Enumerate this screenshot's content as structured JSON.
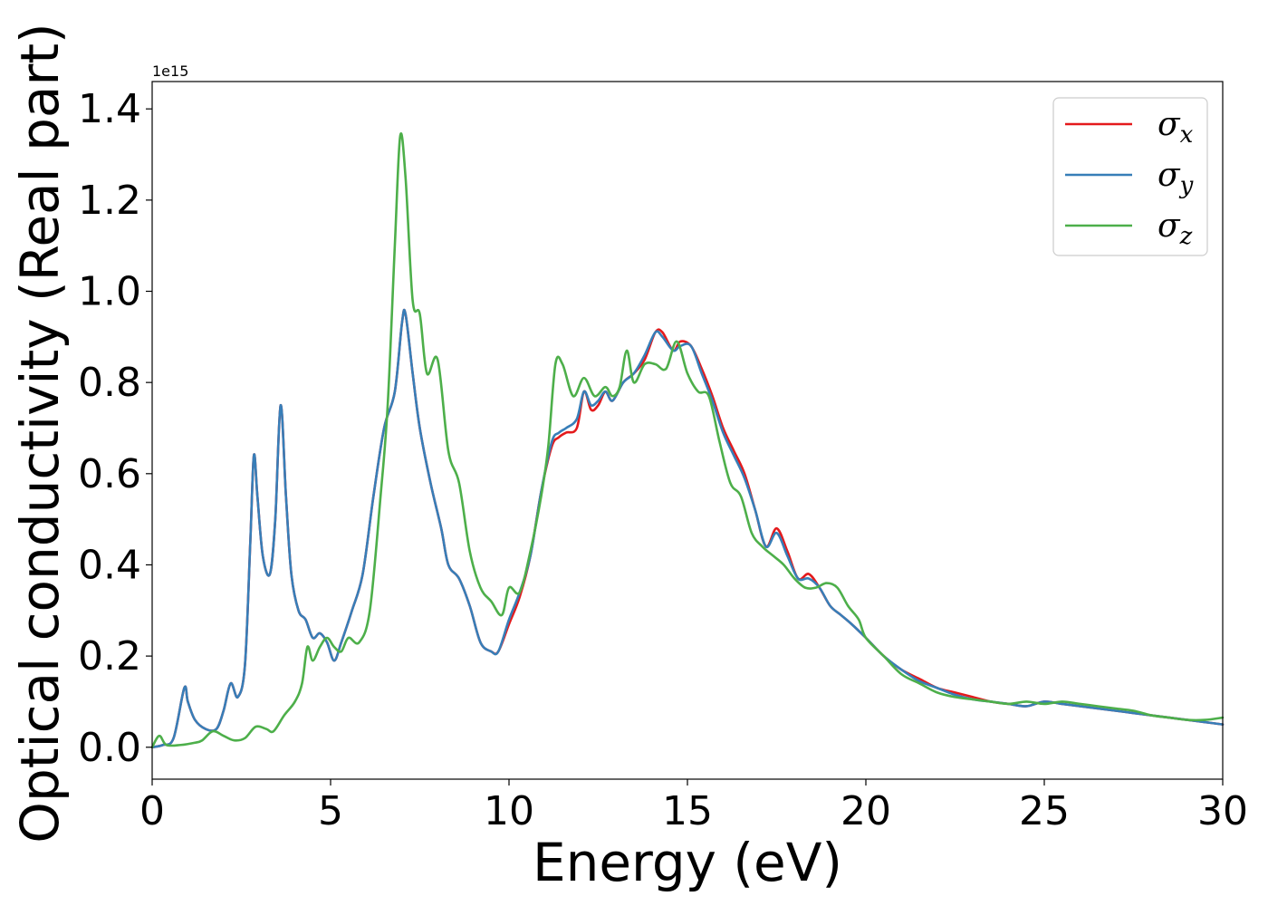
{
  "chart_data": {
    "type": "line",
    "xlabel": "Energy (eV)",
    "ylabel": "Optical conductivity (Real part)",
    "y_offset_text": "1e15",
    "xlim": [
      0,
      30
    ],
    "ylim": [
      -0.07,
      1.46
    ],
    "xticks": [
      0,
      5,
      10,
      15,
      20,
      25,
      30
    ],
    "xtick_labels": [
      "0",
      "5",
      "10",
      "15",
      "20",
      "25",
      "30"
    ],
    "yticks": [
      0.0,
      0.2,
      0.4,
      0.6,
      0.8,
      1.0,
      1.2,
      1.4
    ],
    "ytick_labels": [
      "0.0",
      "0.2",
      "0.4",
      "0.6",
      "0.8",
      "1.0",
      "1.2",
      "1.4"
    ],
    "grid": false,
    "legend_position": "top-right",
    "series": [
      {
        "name": "σx",
        "legend_base": "σ",
        "legend_sub": "x",
        "color": "#e41a1c",
        "points": [
          [
            0,
            0.0
          ],
          [
            0.3,
            0.005
          ],
          [
            0.6,
            0.02
          ],
          [
            0.9,
            0.13
          ],
          [
            1.0,
            0.1
          ],
          [
            1.2,
            0.06
          ],
          [
            1.5,
            0.04
          ],
          [
            1.8,
            0.04
          ],
          [
            2.0,
            0.08
          ],
          [
            2.2,
            0.14
          ],
          [
            2.4,
            0.11
          ],
          [
            2.6,
            0.18
          ],
          [
            2.75,
            0.45
          ],
          [
            2.85,
            0.64
          ],
          [
            2.95,
            0.55
          ],
          [
            3.1,
            0.42
          ],
          [
            3.3,
            0.38
          ],
          [
            3.45,
            0.5
          ],
          [
            3.6,
            0.75
          ],
          [
            3.75,
            0.55
          ],
          [
            3.9,
            0.38
          ],
          [
            4.1,
            0.3
          ],
          [
            4.3,
            0.28
          ],
          [
            4.5,
            0.24
          ],
          [
            4.7,
            0.25
          ],
          [
            4.9,
            0.23
          ],
          [
            5.1,
            0.19
          ],
          [
            5.3,
            0.23
          ],
          [
            5.6,
            0.3
          ],
          [
            5.9,
            0.38
          ],
          [
            6.2,
            0.55
          ],
          [
            6.5,
            0.7
          ],
          [
            6.8,
            0.78
          ],
          [
            7.0,
            0.93
          ],
          [
            7.1,
            0.95
          ],
          [
            7.3,
            0.82
          ],
          [
            7.5,
            0.7
          ],
          [
            7.8,
            0.58
          ],
          [
            8.1,
            0.48
          ],
          [
            8.3,
            0.4
          ],
          [
            8.6,
            0.37
          ],
          [
            8.9,
            0.31
          ],
          [
            9.2,
            0.23
          ],
          [
            9.5,
            0.21
          ],
          [
            9.7,
            0.21
          ],
          [
            10.0,
            0.27
          ],
          [
            10.3,
            0.33
          ],
          [
            10.6,
            0.42
          ],
          [
            10.9,
            0.56
          ],
          [
            11.2,
            0.66
          ],
          [
            11.4,
            0.68
          ],
          [
            11.6,
            0.69
          ],
          [
            11.9,
            0.7
          ],
          [
            12.1,
            0.78
          ],
          [
            12.3,
            0.74
          ],
          [
            12.5,
            0.75
          ],
          [
            12.7,
            0.78
          ],
          [
            12.9,
            0.76
          ],
          [
            13.2,
            0.8
          ],
          [
            13.5,
            0.82
          ],
          [
            13.8,
            0.85
          ],
          [
            14.1,
            0.91
          ],
          [
            14.3,
            0.91
          ],
          [
            14.6,
            0.87
          ],
          [
            14.8,
            0.89
          ],
          [
            15.1,
            0.88
          ],
          [
            15.4,
            0.83
          ],
          [
            15.7,
            0.77
          ],
          [
            16.0,
            0.7
          ],
          [
            16.3,
            0.65
          ],
          [
            16.6,
            0.6
          ],
          [
            16.9,
            0.52
          ],
          [
            17.2,
            0.44
          ],
          [
            17.5,
            0.48
          ],
          [
            17.8,
            0.43
          ],
          [
            18.1,
            0.37
          ],
          [
            18.4,
            0.38
          ],
          [
            18.7,
            0.35
          ],
          [
            19.0,
            0.31
          ],
          [
            19.3,
            0.29
          ],
          [
            19.6,
            0.27
          ],
          [
            20.0,
            0.24
          ],
          [
            20.5,
            0.2
          ],
          [
            21.0,
            0.17
          ],
          [
            21.5,
            0.15
          ],
          [
            22.0,
            0.13
          ],
          [
            22.5,
            0.12
          ],
          [
            23.0,
            0.11
          ],
          [
            23.5,
            0.1
          ],
          [
            24.0,
            0.095
          ],
          [
            24.5,
            0.09
          ],
          [
            25.0,
            0.1
          ],
          [
            25.5,
            0.095
          ],
          [
            26.0,
            0.09
          ],
          [
            26.5,
            0.085
          ],
          [
            27.0,
            0.08
          ],
          [
            27.5,
            0.075
          ],
          [
            28.0,
            0.07
          ],
          [
            28.5,
            0.065
          ],
          [
            29.0,
            0.06
          ],
          [
            29.5,
            0.055
          ],
          [
            30.0,
            0.05
          ]
        ]
      },
      {
        "name": "σy",
        "legend_base": "σ",
        "legend_sub": "y",
        "color": "#377eb8",
        "points": [
          [
            0,
            0.0
          ],
          [
            0.3,
            0.005
          ],
          [
            0.6,
            0.02
          ],
          [
            0.9,
            0.13
          ],
          [
            1.0,
            0.1
          ],
          [
            1.2,
            0.06
          ],
          [
            1.5,
            0.04
          ],
          [
            1.8,
            0.04
          ],
          [
            2.0,
            0.08
          ],
          [
            2.2,
            0.14
          ],
          [
            2.4,
            0.11
          ],
          [
            2.6,
            0.18
          ],
          [
            2.75,
            0.45
          ],
          [
            2.85,
            0.64
          ],
          [
            2.95,
            0.55
          ],
          [
            3.1,
            0.42
          ],
          [
            3.3,
            0.38
          ],
          [
            3.45,
            0.5
          ],
          [
            3.6,
            0.75
          ],
          [
            3.75,
            0.55
          ],
          [
            3.9,
            0.38
          ],
          [
            4.1,
            0.3
          ],
          [
            4.3,
            0.28
          ],
          [
            4.5,
            0.24
          ],
          [
            4.7,
            0.25
          ],
          [
            4.9,
            0.23
          ],
          [
            5.1,
            0.19
          ],
          [
            5.3,
            0.23
          ],
          [
            5.6,
            0.3
          ],
          [
            5.9,
            0.38
          ],
          [
            6.2,
            0.55
          ],
          [
            6.5,
            0.7
          ],
          [
            6.8,
            0.78
          ],
          [
            7.0,
            0.93
          ],
          [
            7.1,
            0.95
          ],
          [
            7.3,
            0.82
          ],
          [
            7.5,
            0.7
          ],
          [
            7.8,
            0.58
          ],
          [
            8.1,
            0.48
          ],
          [
            8.3,
            0.4
          ],
          [
            8.6,
            0.37
          ],
          [
            8.9,
            0.31
          ],
          [
            9.2,
            0.23
          ],
          [
            9.5,
            0.21
          ],
          [
            9.7,
            0.21
          ],
          [
            10.0,
            0.28
          ],
          [
            10.3,
            0.34
          ],
          [
            10.6,
            0.42
          ],
          [
            10.9,
            0.56
          ],
          [
            11.2,
            0.67
          ],
          [
            11.4,
            0.69
          ],
          [
            11.6,
            0.7
          ],
          [
            11.9,
            0.72
          ],
          [
            12.1,
            0.78
          ],
          [
            12.3,
            0.75
          ],
          [
            12.5,
            0.76
          ],
          [
            12.7,
            0.78
          ],
          [
            12.9,
            0.76
          ],
          [
            13.2,
            0.8
          ],
          [
            13.5,
            0.82
          ],
          [
            13.8,
            0.86
          ],
          [
            14.1,
            0.91
          ],
          [
            14.3,
            0.9
          ],
          [
            14.6,
            0.87
          ],
          [
            14.8,
            0.88
          ],
          [
            15.1,
            0.88
          ],
          [
            15.4,
            0.82
          ],
          [
            15.7,
            0.76
          ],
          [
            16.0,
            0.69
          ],
          [
            16.3,
            0.64
          ],
          [
            16.6,
            0.59
          ],
          [
            16.9,
            0.52
          ],
          [
            17.2,
            0.44
          ],
          [
            17.5,
            0.47
          ],
          [
            17.8,
            0.42
          ],
          [
            18.1,
            0.37
          ],
          [
            18.4,
            0.37
          ],
          [
            18.7,
            0.35
          ],
          [
            19.0,
            0.31
          ],
          [
            19.3,
            0.29
          ],
          [
            19.6,
            0.27
          ],
          [
            20.0,
            0.24
          ],
          [
            20.5,
            0.2
          ],
          [
            21.0,
            0.17
          ],
          [
            21.5,
            0.145
          ],
          [
            22.0,
            0.13
          ],
          [
            22.5,
            0.115
          ],
          [
            23.0,
            0.105
          ],
          [
            23.5,
            0.1
          ],
          [
            24.0,
            0.095
          ],
          [
            24.5,
            0.09
          ],
          [
            25.0,
            0.1
          ],
          [
            25.5,
            0.095
          ],
          [
            26.0,
            0.09
          ],
          [
            26.5,
            0.085
          ],
          [
            27.0,
            0.08
          ],
          [
            27.5,
            0.075
          ],
          [
            28.0,
            0.07
          ],
          [
            28.5,
            0.065
          ],
          [
            29.0,
            0.06
          ],
          [
            29.5,
            0.055
          ],
          [
            30.0,
            0.05
          ]
        ]
      },
      {
        "name": "σz",
        "legend_base": "σ",
        "legend_sub": "z",
        "color": "#4daf4a",
        "points": [
          [
            0,
            0.0
          ],
          [
            0.2,
            0.025
          ],
          [
            0.4,
            0.005
          ],
          [
            0.8,
            0.005
          ],
          [
            1.2,
            0.01
          ],
          [
            1.4,
            0.015
          ],
          [
            1.7,
            0.035
          ],
          [
            2.0,
            0.025
          ],
          [
            2.3,
            0.015
          ],
          [
            2.6,
            0.02
          ],
          [
            2.9,
            0.045
          ],
          [
            3.2,
            0.04
          ],
          [
            3.4,
            0.035
          ],
          [
            3.7,
            0.07
          ],
          [
            4.0,
            0.1
          ],
          [
            4.2,
            0.14
          ],
          [
            4.35,
            0.22
          ],
          [
            4.5,
            0.19
          ],
          [
            4.7,
            0.22
          ],
          [
            4.9,
            0.24
          ],
          [
            5.1,
            0.22
          ],
          [
            5.3,
            0.21
          ],
          [
            5.5,
            0.24
          ],
          [
            5.8,
            0.23
          ],
          [
            6.1,
            0.3
          ],
          [
            6.4,
            0.55
          ],
          [
            6.6,
            0.75
          ],
          [
            6.8,
            1.1
          ],
          [
            6.95,
            1.34
          ],
          [
            7.1,
            1.25
          ],
          [
            7.3,
            0.98
          ],
          [
            7.5,
            0.95
          ],
          [
            7.7,
            0.82
          ],
          [
            8.0,
            0.85
          ],
          [
            8.3,
            0.65
          ],
          [
            8.6,
            0.58
          ],
          [
            8.9,
            0.43
          ],
          [
            9.2,
            0.35
          ],
          [
            9.5,
            0.32
          ],
          [
            9.8,
            0.29
          ],
          [
            10.0,
            0.35
          ],
          [
            10.3,
            0.34
          ],
          [
            10.6,
            0.43
          ],
          [
            10.9,
            0.55
          ],
          [
            11.1,
            0.66
          ],
          [
            11.3,
            0.84
          ],
          [
            11.5,
            0.84
          ],
          [
            11.8,
            0.77
          ],
          [
            12.1,
            0.81
          ],
          [
            12.4,
            0.77
          ],
          [
            12.7,
            0.79
          ],
          [
            12.9,
            0.77
          ],
          [
            13.1,
            0.79
          ],
          [
            13.3,
            0.87
          ],
          [
            13.5,
            0.8
          ],
          [
            13.8,
            0.84
          ],
          [
            14.1,
            0.84
          ],
          [
            14.4,
            0.83
          ],
          [
            14.7,
            0.89
          ],
          [
            15.0,
            0.82
          ],
          [
            15.3,
            0.78
          ],
          [
            15.6,
            0.77
          ],
          [
            15.9,
            0.67
          ],
          [
            16.2,
            0.58
          ],
          [
            16.5,
            0.55
          ],
          [
            16.8,
            0.47
          ],
          [
            17.1,
            0.44
          ],
          [
            17.4,
            0.42
          ],
          [
            17.7,
            0.4
          ],
          [
            18.0,
            0.37
          ],
          [
            18.3,
            0.35
          ],
          [
            18.6,
            0.35
          ],
          [
            18.9,
            0.36
          ],
          [
            19.2,
            0.35
          ],
          [
            19.5,
            0.31
          ],
          [
            19.8,
            0.28
          ],
          [
            20.0,
            0.24
          ],
          [
            20.5,
            0.2
          ],
          [
            21.0,
            0.16
          ],
          [
            21.5,
            0.14
          ],
          [
            22.0,
            0.12
          ],
          [
            22.5,
            0.11
          ],
          [
            23.0,
            0.105
          ],
          [
            23.5,
            0.1
          ],
          [
            24.0,
            0.095
          ],
          [
            24.5,
            0.1
          ],
          [
            25.0,
            0.095
          ],
          [
            25.5,
            0.1
          ],
          [
            26.0,
            0.095
          ],
          [
            26.5,
            0.09
          ],
          [
            27.0,
            0.085
          ],
          [
            27.5,
            0.08
          ],
          [
            28.0,
            0.07
          ],
          [
            28.5,
            0.065
          ],
          [
            29.0,
            0.06
          ],
          [
            29.5,
            0.06
          ],
          [
            30.0,
            0.065
          ]
        ]
      }
    ]
  }
}
